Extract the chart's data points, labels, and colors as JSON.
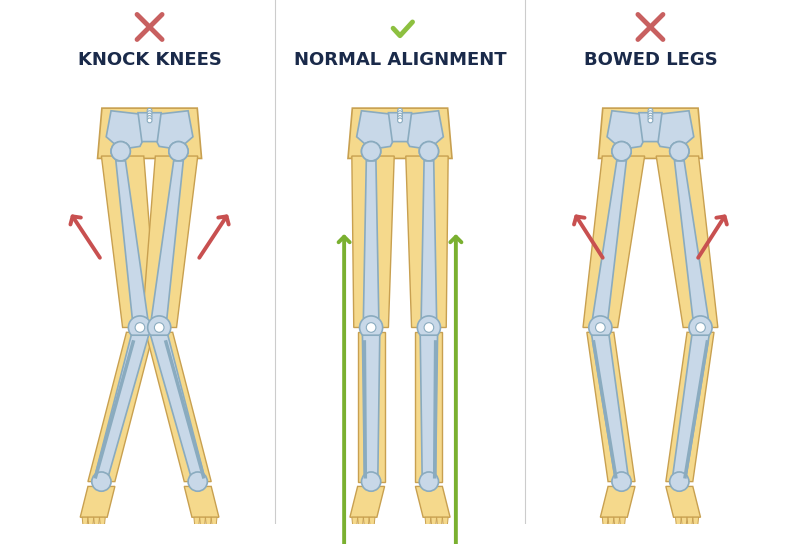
{
  "title_left": "KNOCK KNEES",
  "title_center": "NORMAL ALIGNMENT",
  "title_right": "BOWED LEGS",
  "bg_color": "#FFFFFF",
  "skin_color": "#F5D98C",
  "skin_outline": "#C8A050",
  "bone_fill": "#C8D8E8",
  "bone_outline": "#8AABBF",
  "arrow_red": "#C85050",
  "arrow_green": "#7AB030",
  "text_color": "#1A2A4A",
  "check_color": "#8DC040",
  "cross_color": "#C86060",
  "title_fontsize": 13
}
